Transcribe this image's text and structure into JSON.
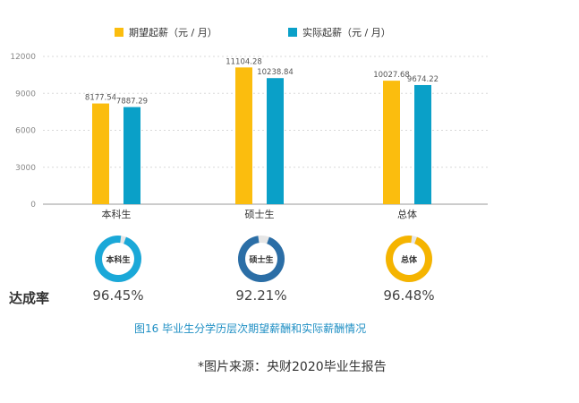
{
  "legend": {
    "expected_label": "期望起薪（元 / 月）",
    "actual_label": "实际起薪（元 / 月）"
  },
  "colors": {
    "expected": "#FBBD0E",
    "actual": "#0AA0C8",
    "ring_bachelor": "#1AA8D8",
    "ring_master": "#2B6EA6",
    "ring_total": "#F5B400",
    "ring_track": "#E6E6E6",
    "gridline": "#D8D8D8",
    "caption": "#1F8FC4"
  },
  "chart_data": {
    "type": "bar",
    "categories": [
      "本科生",
      "硕士生",
      "总体"
    ],
    "series": [
      {
        "name": "期望起薪（元 / 月）",
        "values": [
          8177.54,
          11104.28,
          10027.68
        ],
        "labels": [
          "8177.54",
          "11104.28",
          "10027.68"
        ]
      },
      {
        "name": "实际起薪（元 / 月）",
        "values": [
          7887.29,
          10238.84,
          9674.22
        ],
        "labels": [
          "7887.29",
          "10238.84",
          "9674.22"
        ]
      }
    ],
    "yticks": [
      "12000",
      "9000",
      "6000",
      "3000",
      "0"
    ],
    "ylim": [
      0,
      12000
    ],
    "grid": true,
    "legend_position": "top"
  },
  "rates": {
    "label": "达成率",
    "items": [
      {
        "name": "本科生",
        "value": 96.45,
        "text": "96.45%"
      },
      {
        "name": "硕士生",
        "value": 92.21,
        "text": "92.21%"
      },
      {
        "name": "总体",
        "value": 96.48,
        "text": "96.48%"
      }
    ]
  },
  "caption": "图16  毕业生分学历层次期望薪酬和实际薪酬情况",
  "source": "*图片来源：央财2020毕业生报告"
}
